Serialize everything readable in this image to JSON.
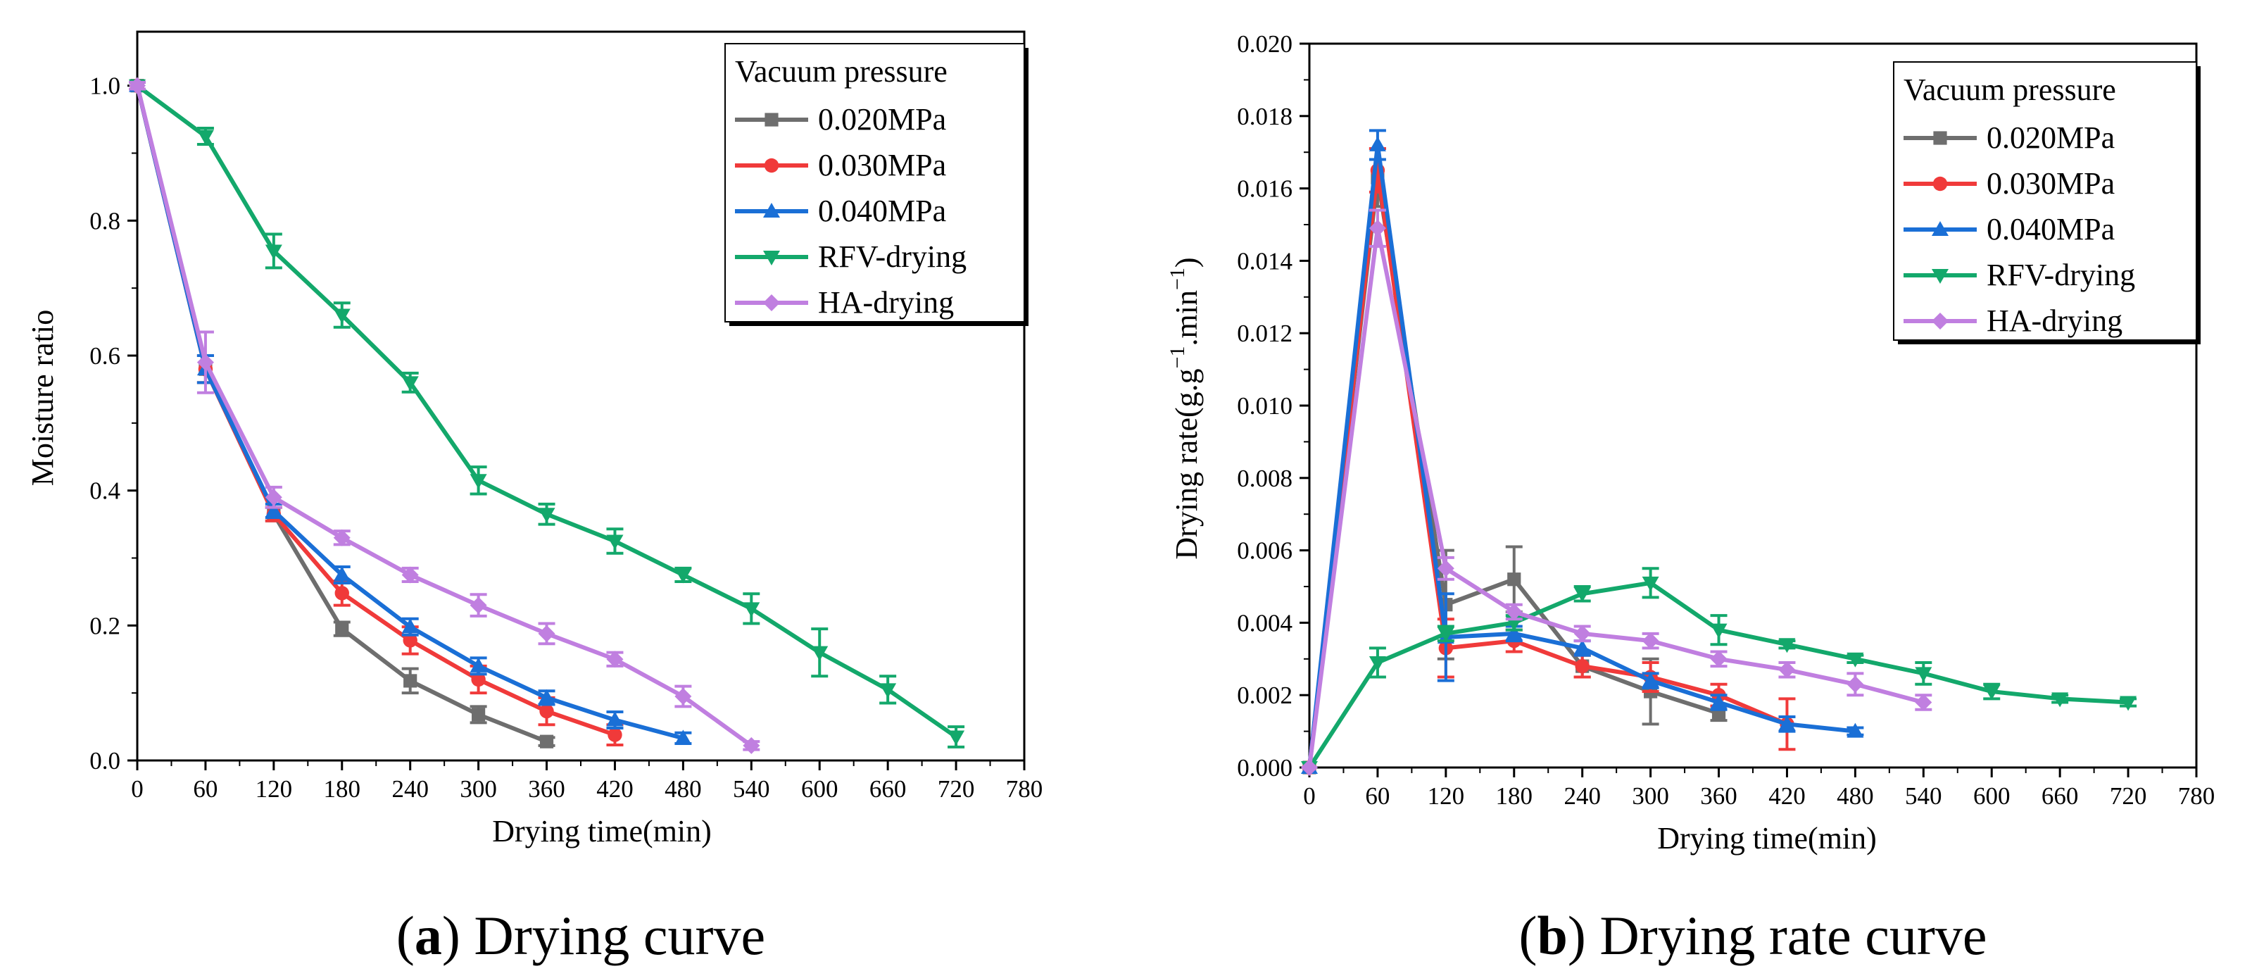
{
  "chart_data": [
    {
      "id": "a",
      "type": "line",
      "caption_letter": "a",
      "caption_text": "Drying curve",
      "xlabel": "Drying time(min)",
      "ylabel": "Moisture ratio",
      "xlim": [
        0,
        780
      ],
      "ylim": [
        0,
        1.08
      ],
      "xticks": [
        "0",
        "60",
        "120",
        "180",
        "240",
        "300",
        "360",
        "420",
        "480",
        "540",
        "600",
        "660",
        "720",
        "780"
      ],
      "yticks": [
        "0.0",
        "0.2",
        "0.4",
        "0.6",
        "0.8",
        "1.0"
      ],
      "legend_title": "Vacuum pressure",
      "legend_position": "top-right",
      "series": [
        {
          "name": "0.020MPa",
          "color": "#6e6e6e",
          "marker": "square",
          "x": [
            0,
            60,
            120,
            180,
            240,
            300,
            360
          ],
          "y": [
            1.0,
            0.58,
            0.365,
            0.195,
            0.118,
            0.068,
            0.028
          ],
          "err": [
            0.005,
            0.02,
            0.01,
            0.01,
            0.018,
            0.012,
            0.006
          ]
        },
        {
          "name": "0.030MPa",
          "color": "#f03a3a",
          "marker": "circle",
          "x": [
            0,
            60,
            120,
            180,
            240,
            300,
            360,
            420
          ],
          "y": [
            1.0,
            0.58,
            0.365,
            0.248,
            0.178,
            0.12,
            0.073,
            0.038
          ],
          "err": [
            0.005,
            0.02,
            0.01,
            0.018,
            0.02,
            0.02,
            0.02,
            0.015
          ]
        },
        {
          "name": "0.040MPa",
          "color": "#1a6fd6",
          "marker": "triangle-up",
          "x": [
            0,
            60,
            120,
            180,
            240,
            300,
            360,
            420,
            480
          ],
          "y": [
            1.0,
            0.58,
            0.37,
            0.275,
            0.198,
            0.14,
            0.093,
            0.06,
            0.033
          ],
          "err": [
            0.005,
            0.02,
            0.01,
            0.012,
            0.012,
            0.012,
            0.01,
            0.012,
            0.008
          ]
        },
        {
          "name": "RFV-drying",
          "color": "#13a86b",
          "marker": "triangle-down",
          "x": [
            0,
            60,
            120,
            180,
            240,
            300,
            360,
            420,
            480,
            540,
            600,
            660,
            720
          ],
          "y": [
            1.0,
            0.925,
            0.755,
            0.66,
            0.56,
            0.415,
            0.365,
            0.325,
            0.275,
            0.225,
            0.16,
            0.105,
            0.035
          ],
          "err": [
            0.005,
            0.012,
            0.025,
            0.018,
            0.014,
            0.02,
            0.015,
            0.018,
            0.01,
            0.022,
            0.035,
            0.02,
            0.015
          ]
        },
        {
          "name": "HA-drying",
          "color": "#c07fe0",
          "marker": "diamond",
          "x": [
            0,
            60,
            120,
            180,
            240,
            300,
            360,
            420,
            480,
            540
          ],
          "y": [
            1.0,
            0.59,
            0.39,
            0.33,
            0.275,
            0.23,
            0.188,
            0.15,
            0.095,
            0.022
          ],
          "err": [
            0.005,
            0.045,
            0.015,
            0.01,
            0.01,
            0.016,
            0.015,
            0.01,
            0.015,
            0.006
          ]
        }
      ]
    },
    {
      "id": "b",
      "type": "line",
      "caption_letter": "b",
      "caption_text": "Drying rate curve",
      "xlabel": "Drying time(min)",
      "ylabel": "Drying rate(g.g",
      "ylabel_sup1": "−1",
      "ylabel_mid": ".min",
      "ylabel_sup2": "−1",
      "ylabel_end": ")",
      "xlim": [
        0,
        780
      ],
      "ylim": [
        0,
        0.02
      ],
      "xticks": [
        "0",
        "60",
        "120",
        "180",
        "240",
        "300",
        "360",
        "420",
        "480",
        "540",
        "600",
        "660",
        "720",
        "780"
      ],
      "yticks": [
        "0.000",
        "0.002",
        "0.004",
        "0.006",
        "0.008",
        "0.010",
        "0.012",
        "0.014",
        "0.016",
        "0.018",
        "0.020"
      ],
      "legend_title": "Vacuum pressure",
      "legend_position": "top-right",
      "series": [
        {
          "name": "0.020MPa",
          "color": "#6e6e6e",
          "marker": "square",
          "x": [
            0,
            60,
            120,
            180,
            240,
            300,
            360
          ],
          "y": [
            0,
            0.0163,
            0.0045,
            0.0052,
            0.0028,
            0.0021,
            0.0015
          ],
          "err": [
            0,
            0.0008,
            0.0015,
            0.0009,
            0.0003,
            0.0009,
            0.0002
          ]
        },
        {
          "name": "0.030MPa",
          "color": "#f03a3a",
          "marker": "circle",
          "x": [
            0,
            60,
            120,
            180,
            240,
            300,
            360,
            420
          ],
          "y": [
            0,
            0.0165,
            0.0033,
            0.0035,
            0.0028,
            0.0025,
            0.002,
            0.0012
          ],
          "err": [
            0,
            0.0006,
            0.0008,
            0.0003,
            0.0003,
            0.0004,
            0.0003,
            0.0007
          ]
        },
        {
          "name": "0.040MPa",
          "color": "#1a6fd6",
          "marker": "triangle-up",
          "x": [
            0,
            60,
            120,
            180,
            240,
            300,
            360,
            420,
            480
          ],
          "y": [
            0,
            0.0172,
            0.0036,
            0.0037,
            0.0033,
            0.0024,
            0.0018,
            0.0012,
            0.001
          ],
          "err": [
            0,
            0.0004,
            0.0012,
            0.0002,
            0.0002,
            0.0002,
            0.0002,
            0.0002,
            0.0001
          ]
        },
        {
          "name": "RFV-drying",
          "color": "#13a86b",
          "marker": "triangle-down",
          "x": [
            0,
            60,
            120,
            180,
            240,
            300,
            360,
            420,
            480,
            540,
            600,
            660,
            720
          ],
          "y": [
            0,
            0.0029,
            0.0037,
            0.004,
            0.0048,
            0.0051,
            0.0038,
            0.0034,
            0.003,
            0.0026,
            0.0021,
            0.0019,
            0.0018
          ],
          "err": [
            0,
            0.0004,
            0.0002,
            0.0002,
            0.0002,
            0.0004,
            0.0004,
            0.0001,
            0.0001,
            0.0003,
            0.0002,
            0.0001,
            0.0001
          ]
        },
        {
          "name": "HA-drying",
          "color": "#c07fe0",
          "marker": "diamond",
          "x": [
            0,
            60,
            120,
            180,
            240,
            300,
            360,
            420,
            480,
            540
          ],
          "y": [
            0,
            0.0149,
            0.0055,
            0.0043,
            0.0037,
            0.0035,
            0.003,
            0.0027,
            0.0023,
            0.0018
          ],
          "err": [
            0,
            0.0005,
            0.0003,
            0.0002,
            0.0002,
            0.0002,
            0.0002,
            0.0002,
            0.0003,
            0.0002
          ]
        }
      ]
    }
  ]
}
